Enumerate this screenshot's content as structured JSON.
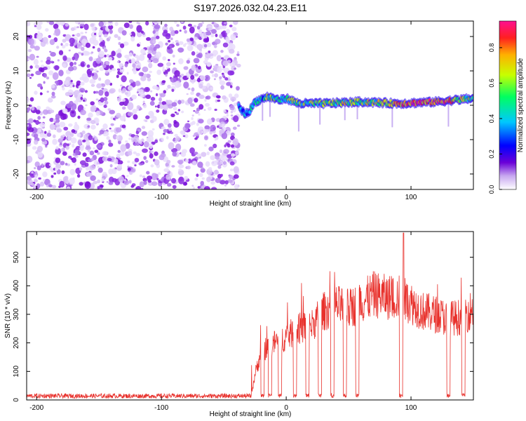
{
  "title": "S197.2026.032.04.23.E11",
  "colors": {
    "snr_line": "#e8312c",
    "dots": "#8a2be2",
    "axes": "#000000",
    "colormap": [
      "#ffffff",
      "#6a00d8",
      "#0000ff",
      "#00c8ff",
      "#00ff60",
      "#c8ff00",
      "#ffb000",
      "#ff2020",
      "#ff1090"
    ]
  },
  "chart_data": [
    {
      "type": "heatmap",
      "title": "S197.2026.032.04.23.E11",
      "xlabel": "Height of straight line (km)",
      "ylabel": "Frequency (Hz)",
      "xlim": [
        -208,
        150
      ],
      "ylim": [
        -24.5,
        24.5
      ],
      "xticks": [
        -200,
        -100,
        0,
        100
      ],
      "xtick_labels": [
        "-200",
        "-100",
        "0",
        "100"
      ],
      "yticks": [
        -20,
        -10,
        0,
        10,
        20
      ],
      "ytick_labels": [
        "-20",
        "-10",
        "0",
        "10",
        "20"
      ],
      "noise_region_km": [
        -208,
        -38
      ],
      "ridge": {
        "x_start": -38,
        "x_end": 150,
        "frequency_hz": [
          [
            -38,
            -0.5
          ],
          [
            -33,
            -2.5
          ],
          [
            -30,
            -2.0
          ],
          [
            -25,
            1.0
          ],
          [
            -15,
            2.5
          ],
          [
            -5,
            1.5
          ],
          [
            0,
            2.0
          ],
          [
            10,
            0.5
          ],
          [
            30,
            0.5
          ],
          [
            60,
            1.0
          ],
          [
            90,
            0.5
          ],
          [
            120,
            1.0
          ],
          [
            150,
            2.0
          ]
        ],
        "amplitude": [
          [
            -38,
            0.45
          ],
          [
            -10,
            0.55
          ],
          [
            10,
            0.6
          ],
          [
            50,
            0.7
          ],
          [
            80,
            0.7
          ],
          [
            100,
            0.9
          ],
          [
            130,
            0.85
          ],
          [
            150,
            0.6
          ]
        ]
      },
      "colorbar": {
        "label": "Normalized spectral amplitude",
        "range": [
          0.0,
          0.95
        ],
        "ticks": [
          0.0,
          0.2,
          0.4,
          0.6,
          0.8
        ],
        "tick_labels": [
          "0.0",
          "0.2",
          "0.4",
          "0.6",
          "0.8"
        ]
      }
    },
    {
      "type": "line",
      "xlabel": "Height of straight line (km)",
      "ylabel": "SNR (10 * v/v)",
      "xlim": [
        -208,
        150
      ],
      "ylim": [
        0,
        590
      ],
      "xticks": [
        -200,
        -100,
        0,
        100
      ],
      "xtick_labels": [
        "-200",
        "-100",
        "0",
        "100"
      ],
      "yticks": [
        0,
        100,
        200,
        300,
        400,
        500
      ],
      "ytick_labels": [
        "0",
        "100",
        "200",
        "300",
        "400",
        "500"
      ],
      "series": [
        {
          "name": "SNR",
          "envelope": [
            [
              -208,
              15
            ],
            [
              -28,
              15
            ],
            [
              -25,
              90
            ],
            [
              -20,
              170
            ],
            [
              -10,
              200
            ],
            [
              0,
              220
            ],
            [
              10,
              250
            ],
            [
              20,
              260
            ],
            [
              30,
              310
            ],
            [
              40,
              330
            ],
            [
              50,
              320
            ],
            [
              60,
              340
            ],
            [
              70,
              370
            ],
            [
              80,
              360
            ],
            [
              90,
              360
            ],
            [
              95,
              350
            ],
            [
              100,
              340
            ],
            [
              110,
              310
            ],
            [
              120,
              300
            ],
            [
              130,
              285
            ],
            [
              140,
              290
            ],
            [
              150,
              320
            ]
          ],
          "dropouts_km": [
            -19,
            -13,
            -5,
            7,
            17,
            27,
            37,
            47,
            57,
            92,
            130,
            142
          ],
          "peak": [
            94,
            585
          ]
        }
      ]
    }
  ]
}
